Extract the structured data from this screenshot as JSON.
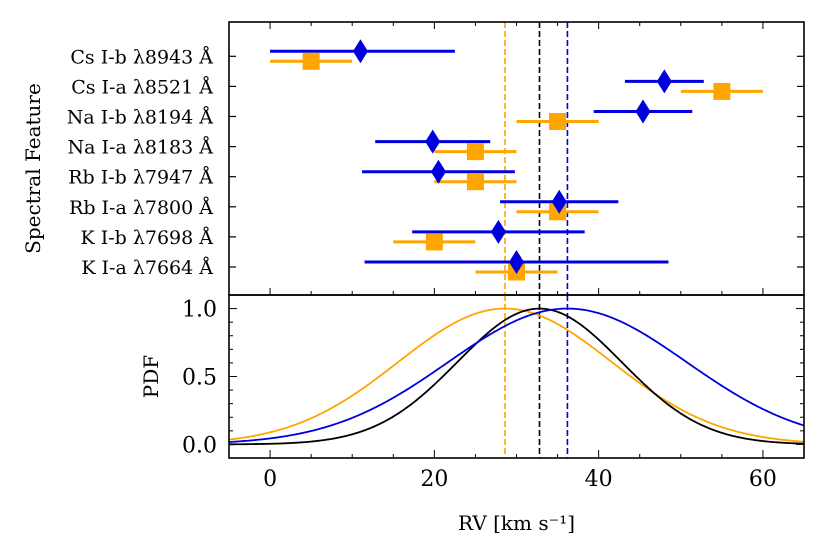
{
  "chart_data": [
    {
      "type": "scatter",
      "panel": "top",
      "ylabel": "Spectral Feature",
      "xlim": [
        -5,
        65
      ],
      "categories": [
        "K I-a λ7664 Å",
        "K I-b λ7698 Å",
        "Rb I-a λ7800 Å",
        "Rb I-b λ7947 Å",
        "Na I-a λ8183 Å",
        "Na I-b λ8194 Å",
        "Cs I-a λ8521 Å",
        "Cs I-b λ8943 Å"
      ],
      "series": [
        {
          "name": "blue diamonds",
          "color": "#0000dd",
          "marker": "diamond",
          "values": [
            30.0,
            27.8,
            35.2,
            20.5,
            19.8,
            45.4,
            48.0,
            11.0
          ],
          "err_low": [
            18.5,
            10.5,
            7.2,
            9.3,
            7.0,
            6.0,
            4.8,
            11.0
          ],
          "err_high": [
            18.5,
            10.5,
            7.2,
            9.3,
            7.0,
            6.0,
            4.8,
            11.5
          ]
        },
        {
          "name": "orange squares",
          "color": "#ffa500",
          "marker": "square",
          "values": [
            30.0,
            20.0,
            35.0,
            25.0,
            25.0,
            35.0,
            55.0,
            5.0
          ],
          "err_low": [
            5.0,
            5.0,
            5.0,
            5.0,
            5.0,
            5.0,
            5.0,
            5.0
          ],
          "err_high": [
            5.0,
            5.0,
            5.0,
            5.0,
            5.0,
            5.0,
            5.0,
            5.0
          ]
        }
      ],
      "vlines": [
        {
          "x": 28.6,
          "color": "#ffa500",
          "style": "dashed"
        },
        {
          "x": 32.8,
          "color": "#000000",
          "style": "dashed"
        },
        {
          "x": 36.2,
          "color": "#0000dd",
          "style": "dashed"
        }
      ]
    },
    {
      "type": "line",
      "panel": "bottom",
      "ylabel": "PDF",
      "xlabel": "RV [km s⁻¹]",
      "xlim": [
        -5,
        65
      ],
      "ylim": [
        -0.1,
        1.1
      ],
      "xticks": [
        0,
        20,
        40,
        60
      ],
      "yticks": [
        0.0,
        0.5,
        1.0
      ],
      "xtick_labels": [
        "0",
        "20",
        "40",
        "60"
      ],
      "ytick_labels": [
        "0.0",
        "0.5",
        "1.0"
      ],
      "series": [
        {
          "name": "orange",
          "color": "#ffa500",
          "mu": 28.6,
          "sigma_left": 13.0,
          "sigma_right": 13.0
        },
        {
          "name": "black",
          "color": "#000000",
          "mu": 32.8,
          "sigma_left": 10.0,
          "sigma_right": 10.0
        },
        {
          "name": "blue",
          "color": "#0000dd",
          "mu": 36.2,
          "sigma_left": 14.5,
          "sigma_right": 14.5
        }
      ],
      "vlines": [
        {
          "x": 28.6,
          "color": "#ffa500",
          "style": "dashed"
        },
        {
          "x": 32.8,
          "color": "#000000",
          "style": "dashed"
        },
        {
          "x": 36.2,
          "color": "#0000dd",
          "style": "dashed"
        }
      ]
    }
  ]
}
